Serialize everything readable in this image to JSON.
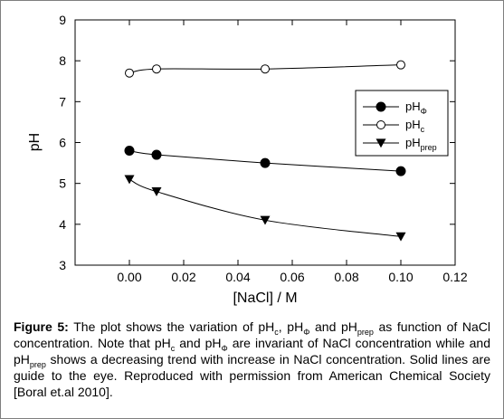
{
  "chart_data": {
    "type": "line",
    "xlabel": "[NaCl] / M",
    "ylabel": "pH",
    "xlim": [
      -0.02,
      0.12
    ],
    "ylim": [
      3,
      9
    ],
    "xticks": [
      0.0,
      0.02,
      0.04,
      0.06,
      0.08,
      0.1,
      0.12
    ],
    "xtick_labels": [
      "0.00",
      "0.02",
      "0.04",
      "0.06",
      "0.08",
      "0.10",
      "0.12"
    ],
    "yticks": [
      3,
      4,
      5,
      6,
      7,
      8,
      9
    ],
    "ytick_labels": [
      "3",
      "4",
      "5",
      "6",
      "7",
      "8",
      "9"
    ],
    "grid": false,
    "legend_position": "right",
    "series": [
      {
        "name_base": "pH",
        "name_sub": "Φ",
        "marker": "filled-circle",
        "x": [
          0.0,
          0.01,
          0.05,
          0.1
        ],
        "y": [
          5.8,
          5.7,
          5.5,
          5.3
        ]
      },
      {
        "name_base": "pH",
        "name_sub": "c",
        "marker": "open-circle",
        "x": [
          0.0,
          0.01,
          0.05,
          0.1
        ],
        "y": [
          7.7,
          7.8,
          7.8,
          7.9
        ]
      },
      {
        "name_base": "pH",
        "name_sub": "prep",
        "marker": "filled-triangle-down",
        "x": [
          0.0,
          0.01,
          0.05,
          0.1
        ],
        "y": [
          5.1,
          4.8,
          4.1,
          3.7
        ]
      }
    ]
  },
  "caption": {
    "label": "Figure 5:",
    "t1": " The plot shows the variation of pH",
    "s1": "c",
    "t2": ", pH",
    "s2": "Φ",
    "t3": " and pH",
    "s3": "prep",
    "t4": " as function of NaCl concentration. Note that pH",
    "s4": "c",
    "t5": " and pH",
    "s5": "Φ",
    "t6": " are invariant of NaCl concentration while and pH",
    "s6": "prep",
    "t7": " shows a decreasing trend with increase in NaCl concentration. Solid lines are guide to the eye. Reproduced with permission from American Chemical Society [Boral et.al 2010]."
  }
}
